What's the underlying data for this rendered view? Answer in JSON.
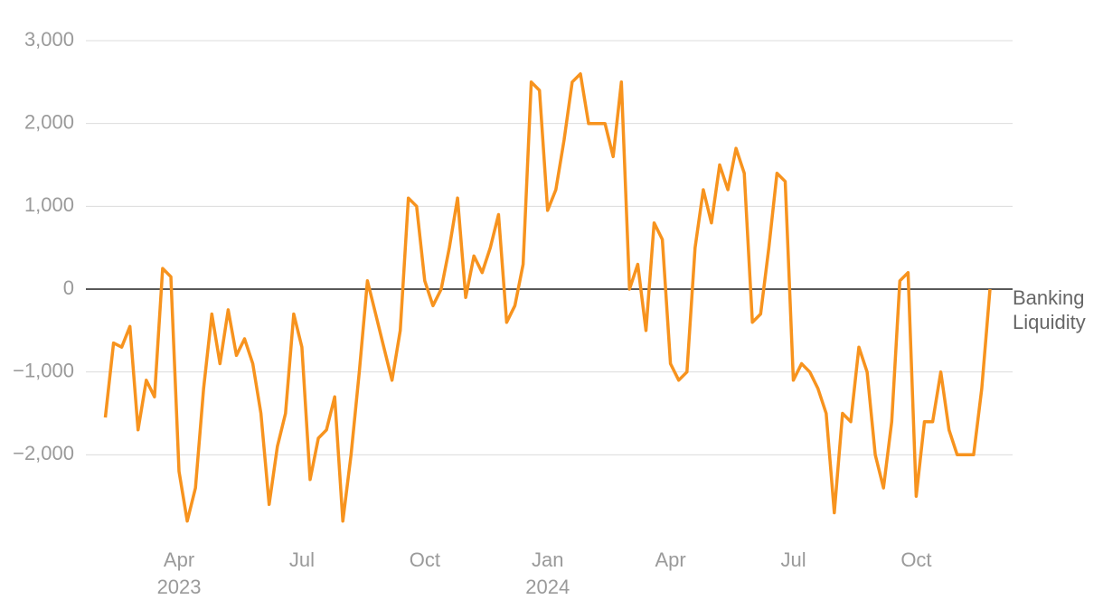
{
  "chart_data": {
    "type": "line",
    "categories": [
      null,
      null,
      null,
      null,
      null,
      null,
      null,
      null,
      null,
      "Apr 2023",
      null,
      null,
      null,
      null,
      null,
      null,
      null,
      null,
      null,
      null,
      null,
      null,
      null,
      null,
      "Jul",
      null,
      null,
      null,
      null,
      null,
      null,
      null,
      null,
      null,
      null,
      null,
      null,
      null,
      null,
      "Oct",
      null,
      null,
      null,
      null,
      null,
      null,
      null,
      null,
      null,
      null,
      null,
      null,
      null,
      null,
      "Jan 2024",
      null,
      null,
      null,
      null,
      null,
      null,
      null,
      null,
      null,
      null,
      null,
      null,
      null,
      null,
      "Apr",
      null,
      null,
      null,
      null,
      null,
      null,
      null,
      null,
      null,
      null,
      null,
      null,
      null,
      null,
      "Jul",
      null,
      null,
      null,
      null,
      null,
      null,
      null,
      null,
      null,
      null,
      null,
      null,
      null,
      null,
      "Oct",
      null,
      null,
      null,
      null,
      null,
      null,
      null,
      null,
      null
    ],
    "series": [
      {
        "name": "Banking Liquidity",
        "color": "#f7931e",
        "values": [
          -1550,
          -650,
          -700,
          -450,
          -1700,
          -1100,
          -1300,
          250,
          150,
          -2200,
          -2800,
          -2400,
          -1200,
          -300,
          -900,
          -250,
          -800,
          -600,
          -900,
          -1500,
          -2600,
          -1900,
          -1500,
          -300,
          -700,
          -2300,
          -1800,
          -1700,
          -1300,
          -2800,
          -2000,
          -1000,
          100,
          -300,
          -700,
          -1100,
          -500,
          1100,
          1000,
          100,
          -200,
          0,
          500,
          1100,
          -100,
          400,
          200,
          500,
          900,
          -400,
          -200,
          300,
          2500,
          2400,
          950,
          1200,
          1800,
          2500,
          2600,
          2000,
          2000,
          2000,
          1600,
          2500,
          0,
          300,
          -500,
          800,
          600,
          -900,
          -1100,
          -1000,
          500,
          1200,
          800,
          1500,
          1200,
          1700,
          1400,
          -400,
          -300,
          500,
          1400,
          1300,
          -1100,
          -900,
          -1000,
          -1200,
          -1500,
          -2700,
          -1500,
          -1600,
          -700,
          -1000,
          -2000,
          -2400,
          -1600,
          100,
          200,
          -2500,
          -1600,
          -1600,
          -1000,
          -1700,
          -2000,
          -2000,
          -2000,
          -1200,
          0
        ]
      }
    ],
    "ylim": [
      -3000,
      3300
    ],
    "yticks": [
      {
        "value": -2000,
        "label": "−2,000"
      },
      {
        "value": -1000,
        "label": "−1,000"
      },
      0,
      {
        "value": 1000,
        "label": "1,000"
      },
      {
        "value": 2000,
        "label": "2,000"
      },
      {
        "value": 3000,
        "label": "3,000"
      }
    ],
    "grid": true
  }
}
